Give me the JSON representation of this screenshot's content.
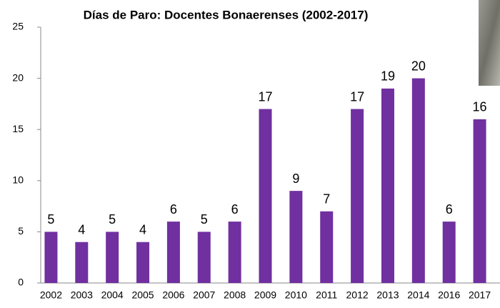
{
  "chart_data": {
    "type": "bar",
    "title": "Días de Paro: Docentes Bonaerenses (2002-2017)",
    "categories": [
      "2002",
      "2003",
      "2004",
      "2005",
      "2006",
      "2007",
      "2008",
      "2009",
      "2010",
      "2011",
      "2012",
      "2013",
      "2014",
      "2016",
      "2017"
    ],
    "values": [
      5,
      4,
      5,
      4,
      6,
      5,
      6,
      17,
      9,
      7,
      17,
      19,
      20,
      6,
      16
    ],
    "color": "#7030a0",
    "ylim": [
      0,
      25
    ],
    "yticks": [
      0,
      5,
      10,
      15,
      20,
      25
    ],
    "grid": false
  }
}
